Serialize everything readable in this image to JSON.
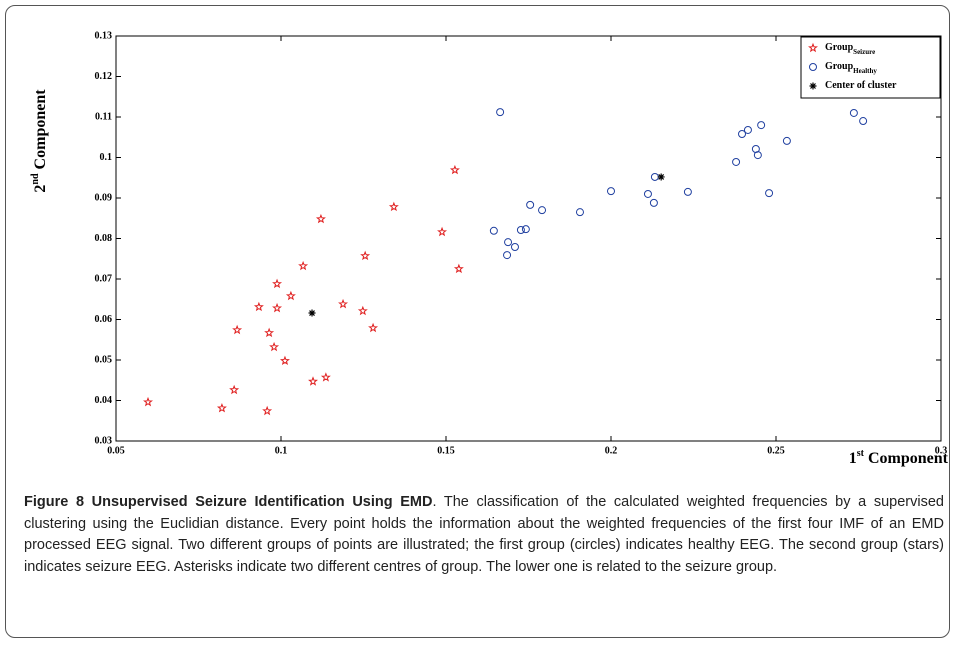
{
  "chart_data": {
    "type": "scatter",
    "xlabel": [
      "1",
      "st",
      " Component"
    ],
    "ylabel": [
      "2",
      "nd",
      " Component"
    ],
    "xlim": [
      0.05,
      0.3
    ],
    "xticks": [
      0.05,
      0.1,
      0.15,
      0.2,
      0.25,
      0.3
    ],
    "ylim": [
      0.03,
      0.13
    ],
    "yticks": [
      0.03,
      0.04,
      0.05,
      0.06,
      0.07,
      0.08,
      0.09,
      0.1,
      0.11,
      0.12,
      0.13
    ],
    "legend": "upper right",
    "series": [
      {
        "name": "Group",
        "subscript": "Seizure",
        "color": "#e02020",
        "marker": "star",
        "x": [
          0.0597,
          0.0821,
          0.0858,
          0.0867,
          0.0933,
          0.0958,
          0.0964,
          0.0979,
          0.0988,
          0.0988,
          0.1012,
          0.103,
          0.1067,
          0.1097,
          0.1121,
          0.1136,
          0.1188,
          0.1255,
          0.1248,
          0.1279,
          0.1342,
          0.1488,
          0.1527,
          0.1539
        ],
        "values": [
          0.0396,
          0.0381,
          0.0426,
          0.0574,
          0.0631,
          0.0374,
          0.0567,
          0.0532,
          0.0628,
          0.0688,
          0.0498,
          0.0658,
          0.0732,
          0.0447,
          0.0848,
          0.0457,
          0.0638,
          0.0757,
          0.0621,
          0.0579,
          0.0878,
          0.0816,
          0.0969,
          0.0725
        ]
      },
      {
        "name": "Group",
        "subscript": "Healthy",
        "color": "#2040a0",
        "marker": "circle",
        "x": [
          0.1664,
          0.1645,
          0.1685,
          0.1688,
          0.1709,
          0.1727,
          0.1742,
          0.1755,
          0.1791,
          0.1906,
          0.2,
          0.2112,
          0.213,
          0.2133,
          0.2233,
          0.2379,
          0.2397,
          0.2415,
          0.2439,
          0.2445,
          0.2455,
          0.2479,
          0.2533,
          0.2736,
          0.2764
        ],
        "values": [
          0.1112,
          0.0819,
          0.0759,
          0.0791,
          0.0779,
          0.0821,
          0.0823,
          0.0883,
          0.087,
          0.0865,
          0.0917,
          0.091,
          0.0888,
          0.0952,
          0.0915,
          0.0989,
          0.1058,
          0.1068,
          0.1021,
          0.1006,
          0.108,
          0.0912,
          0.1041,
          0.111,
          0.109
        ]
      },
      {
        "name": "Center of cluster",
        "color": "#000000",
        "marker": "asterisk",
        "x": [
          0.1094,
          0.2152
        ],
        "values": [
          0.0616,
          0.0952
        ]
      }
    ]
  },
  "caption": {
    "title": "Figure 8 Unsupervised Seizure Identification Using EMD",
    "text": ". The classification of the calculated weighted frequencies by a supervised clustering using the Euclidian distance. Every point holds the information about the weighted frequencies of the first four IMF of an EMD processed EEG signal. Two different groups of points are illustrated; the first group (circles) indicates healthy EEG. The second group (stars) indicates seizure EEG. Asterisks indicate two different centres of group. The lower one is related to the seizure group."
  }
}
